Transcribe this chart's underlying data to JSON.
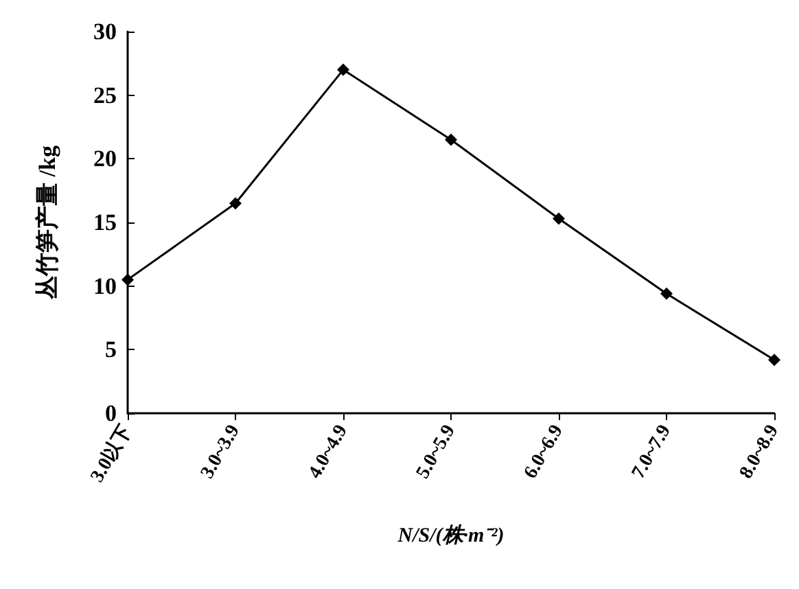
{
  "chart_data": {
    "type": "line",
    "xlabel": "N/S/(株·m⁻²)",
    "ylabel": "丛竹笋产量 /kg",
    "categories": [
      "3.0以下",
      "3.0~3.9",
      "4.0~4.9",
      "5.0~5.9",
      "6.0~6.9",
      "7.0~7.9",
      "8.0~8.9"
    ],
    "series": [
      {
        "color": "#000000",
        "values": [
          10.5,
          16.5,
          27,
          21.5,
          15.3,
          9.4,
          4.2
        ]
      }
    ],
    "ylim": [
      0,
      30
    ],
    "yticks": [
      0,
      5,
      10,
      15,
      20,
      25,
      30
    ],
    "grid": false,
    "marker": "diamond",
    "line_style": "solid"
  }
}
